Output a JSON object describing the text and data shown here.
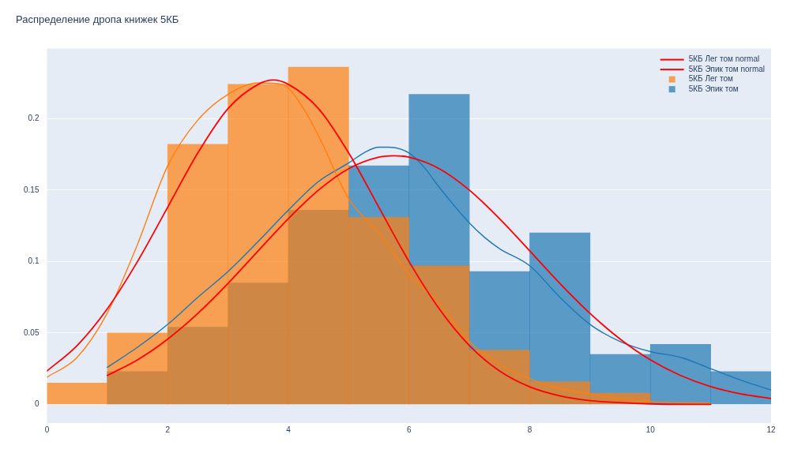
{
  "chart_data": {
    "type": "histogram",
    "title": "Распределение дропа книжек 5КБ",
    "bins": [
      0,
      1,
      2,
      3,
      4,
      5,
      6,
      7,
      8,
      9,
      10,
      11,
      12
    ],
    "series": [
      {
        "name": "5КБ Лег том normal",
        "type": "line",
        "color": "#ff0000",
        "x": [
          0,
          0.5,
          1,
          1.5,
          2,
          2.5,
          3,
          3.5,
          3.75,
          4,
          4.5,
          5,
          5.5,
          6,
          6.5,
          7,
          7.5,
          8,
          8.5,
          9,
          10,
          11
        ],
        "values": [
          0.0234,
          0.0412,
          0.0669,
          0.1,
          0.138,
          0.176,
          0.207,
          0.224,
          0.227,
          0.224,
          0.207,
          0.176,
          0.138,
          0.1,
          0.0669,
          0.0412,
          0.0234,
          0.0123,
          0.006,
          0.0027,
          0.0004,
          0
        ]
      },
      {
        "name": "5КБ Эпик том normal",
        "type": "line",
        "color": "#ff0000",
        "x": [
          1,
          1.5,
          2,
          2.5,
          3,
          3.5,
          4,
          4.5,
          5,
          5.5,
          5.75,
          6,
          6.5,
          7,
          7.5,
          8,
          8.5,
          9,
          9.5,
          10,
          10.5,
          11,
          11.5,
          12
        ],
        "values": [
          0.0203,
          0.0312,
          0.0457,
          0.0637,
          0.0847,
          0.1075,
          0.13,
          0.15,
          0.165,
          0.173,
          0.174,
          0.173,
          0.165,
          0.15,
          0.13,
          0.1075,
          0.0847,
          0.0637,
          0.0457,
          0.0312,
          0.0203,
          0.0125,
          0.0074,
          0.0042
        ]
      },
      {
        "name": "5КБ Лег том",
        "color": "#ff7f0e",
        "values": [
          0.015,
          0.05,
          0.182,
          0.224,
          0.236,
          0.131,
          0.097,
          0.038,
          0.016,
          0.008,
          null,
          null
        ]
      },
      {
        "name": "5КБ Эпик том",
        "color": "#1f77b4",
        "values": [
          null,
          0.023,
          0.054,
          0.085,
          0.136,
          0.167,
          0.217,
          0.093,
          0.12,
          0.035,
          0.042,
          0.023
        ]
      },
      {
        "type": "line",
        "color": "#ff7f0e",
        "x": [
          0,
          0.5,
          1,
          1.5,
          2,
          2.5,
          3,
          3.5,
          3.9,
          4.25,
          4.5,
          5,
          5.5,
          6,
          6.5,
          7,
          7.5,
          8,
          8.5,
          9,
          9.5,
          10,
          11
        ],
        "values": [
          0.019,
          0.033,
          0.064,
          0.112,
          0.167,
          0.199,
          0.217,
          0.225,
          0.224,
          0.207,
          0.188,
          0.144,
          0.12,
          0.091,
          0.071,
          0.044,
          0.028,
          0.018,
          0.011,
          0.0075,
          0.004,
          0.002,
          0.001
        ]
      },
      {
        "type": "line",
        "color": "#1f77b4",
        "x": [
          1,
          1.5,
          2,
          2.5,
          3,
          3.5,
          4,
          4.5,
          5,
          5.25,
          5.5,
          5.65,
          6,
          6.25,
          6.5,
          7,
          7.25,
          7.5,
          8,
          8.5,
          9,
          9.5,
          10,
          10.5,
          11,
          11.5,
          12
        ],
        "values": [
          0.026,
          0.04,
          0.056,
          0.075,
          0.093,
          0.114,
          0.136,
          0.156,
          0.169,
          0.176,
          0.18,
          0.18,
          0.176,
          0.166,
          0.152,
          0.127,
          0.117,
          0.109,
          0.097,
          0.075,
          0.056,
          0.044,
          0.037,
          0.033,
          0.025,
          0.017,
          0.01
        ]
      }
    ],
    "xlim": [
      0,
      12
    ],
    "xticks": [
      0,
      2,
      4,
      6,
      8,
      10,
      12
    ],
    "ylim": [
      -0.013,
      0.249
    ],
    "yticks": [
      0,
      0.05,
      0.1,
      0.15,
      0.2
    ],
    "grid": "y",
    "legend": "top right"
  }
}
